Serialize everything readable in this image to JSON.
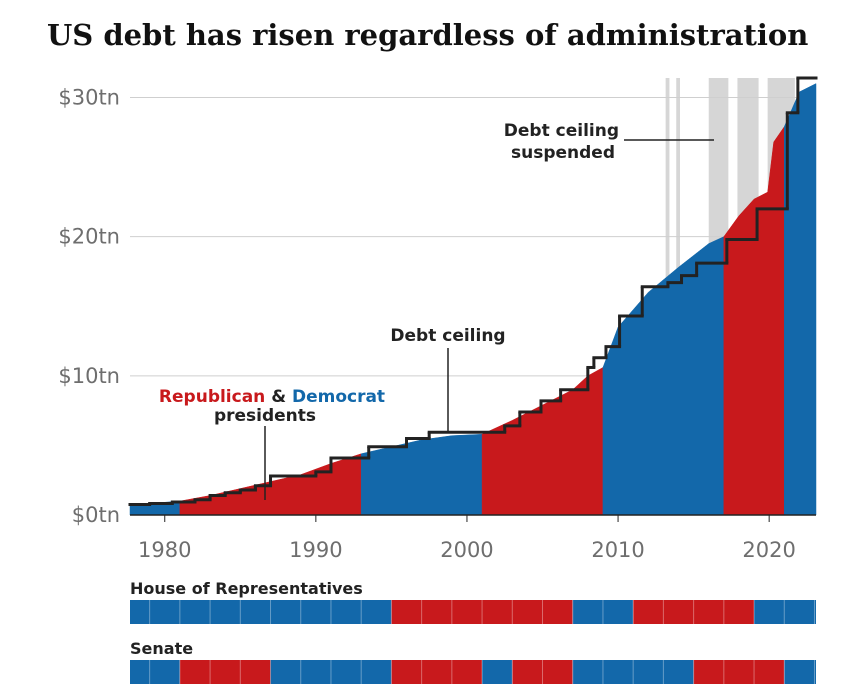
{
  "chart_data": {
    "type": "area",
    "title": "US debt has risen regardless of administration",
    "xlim": [
      1977.7,
      2023.1
    ],
    "xticks": [
      1980,
      1990,
      2000,
      2010,
      2020
    ],
    "ylim": [
      0,
      31.4
    ],
    "yticks": [
      {
        "value": 0,
        "label": "$0tn"
      },
      {
        "value": 10,
        "label": "$10tn"
      },
      {
        "value": 20,
        "label": "$20tn"
      },
      {
        "value": 30,
        "label": "$30tn"
      }
    ],
    "grid": true,
    "legend": {
      "items": [
        {
          "name": "Republican",
          "color": "#c8191c"
        },
        {
          "name": "Democrat",
          "color": "#1368aa"
        }
      ],
      "joiner": "&",
      "suffix": "presidents"
    },
    "segments": [
      {
        "color": "#1368aa",
        "x": [
          1977.7,
          1979,
          1981
        ],
        "values": [
          0.7,
          0.83,
          1.0
        ]
      },
      {
        "color": "#c8191c",
        "x": [
          1981,
          1983,
          1985,
          1987,
          1989,
          1991,
          1993
        ],
        "values": [
          1.0,
          1.4,
          1.9,
          2.4,
          2.9,
          3.7,
          4.4
        ]
      },
      {
        "color": "#1368aa",
        "x": [
          1993,
          1995,
          1997,
          1999,
          2001
        ],
        "values": [
          4.4,
          4.9,
          5.4,
          5.7,
          5.8
        ]
      },
      {
        "color": "#c8191c",
        "x": [
          2001,
          2003,
          2005,
          2007,
          2008,
          2009
        ],
        "values": [
          5.8,
          6.8,
          7.9,
          9.0,
          10.0,
          10.6
        ]
      },
      {
        "color": "#1368aa",
        "x": [
          2009,
          2010,
          2012,
          2014,
          2016,
          2017
        ],
        "values": [
          10.6,
          13.5,
          16.0,
          17.8,
          19.5,
          20.0
        ]
      },
      {
        "color": "#c8191c",
        "x": [
          2017,
          2018,
          2019,
          2019.9,
          2020.3,
          2021
        ],
        "values": [
          20.0,
          21.5,
          22.7,
          23.2,
          26.8,
          27.9
        ]
      },
      {
        "color": "#1368aa",
        "x": [
          2021,
          2022,
          2023.1
        ],
        "values": [
          27.9,
          30.4,
          31.0
        ]
      }
    ],
    "debt_ceiling": {
      "label": "Debt ceiling",
      "color": "#222222",
      "x": [
        1977.7,
        1979,
        1980.5,
        1982,
        1983,
        1984,
        1985,
        1986,
        1987,
        1990,
        1991,
        1993.5,
        1996,
        1997.5,
        2002.5,
        2003.5,
        2004.9,
        2006.2,
        2008,
        2008.4,
        2009.2,
        2010.1,
        2011.6,
        2013.3,
        2014.2,
        2015.2,
        2017.2,
        2019.2,
        2021.2,
        2021.9
      ],
      "values": [
        0.75,
        0.83,
        0.93,
        1.1,
        1.4,
        1.6,
        1.8,
        2.1,
        2.8,
        3.1,
        4.1,
        4.9,
        5.5,
        5.95,
        6.4,
        7.4,
        8.2,
        9.0,
        10.6,
        11.3,
        12.1,
        14.3,
        16.4,
        16.7,
        17.2,
        18.1,
        19.8,
        22.0,
        28.9,
        31.4
      ]
    },
    "suspended": {
      "label": [
        "Debt ceiling",
        "suspended"
      ],
      "color": "#d6d6d6",
      "ranges": [
        [
          2013.15,
          2013.4
        ],
        [
          2013.85,
          2014.1
        ],
        [
          2016.0,
          2017.3
        ],
        [
          2017.9,
          2019.3
        ],
        [
          2019.9,
          2021.7
        ]
      ]
    },
    "congress": [
      {
        "label": "House of Representatives",
        "starts": [
          1977.7,
          1995,
          2007,
          2011,
          2019
        ],
        "colors": [
          "#1368aa",
          "#c8191c",
          "#1368aa",
          "#c8191c",
          "#1368aa"
        ]
      },
      {
        "label": "Senate",
        "starts": [
          1977.7,
          1981,
          1987,
          1995,
          2001,
          2003,
          2007,
          2015,
          2021
        ],
        "colors": [
          "#1368aa",
          "#c8191c",
          "#1368aa",
          "#c8191c",
          "#1368aa",
          "#c8191c",
          "#1368aa",
          "#c8191c",
          "#1368aa"
        ]
      }
    ]
  }
}
